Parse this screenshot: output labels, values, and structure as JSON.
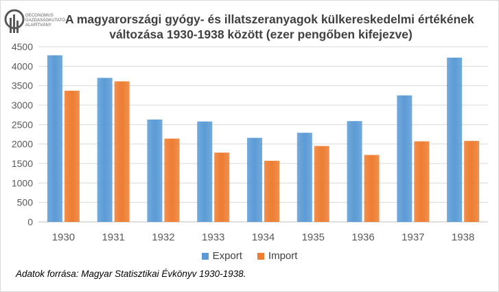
{
  "logo": {
    "lines": [
      "OECONOMUS",
      "GAZDASÁGKUTATÓ",
      "ALAPÍTVÁNY"
    ],
    "color": "#595959"
  },
  "chart_data": {
    "type": "bar",
    "title_lines": [
      "A magyarországi gyógy- és illatszeranyagok külkereskedelmi értékének",
      "változása 1930-1938 között (ezer pengőben kifejezve)"
    ],
    "categories": [
      "1930",
      "1931",
      "1932",
      "1933",
      "1934",
      "1935",
      "1936",
      "1937",
      "1938"
    ],
    "series": [
      {
        "name": "Export",
        "color": "#5b9bd5",
        "values": [
          4280,
          3700,
          2630,
          2580,
          2160,
          2290,
          2590,
          3250,
          4220
        ]
      },
      {
        "name": "Import",
        "color": "#ed7d31",
        "values": [
          3370,
          3610,
          2140,
          1780,
          1570,
          1950,
          1720,
          2070,
          2080
        ]
      }
    ],
    "ylim": [
      0,
      4500
    ],
    "yticks": [
      "0",
      "500",
      "1000",
      "1500",
      "2000",
      "2500",
      "3000",
      "3500",
      "4000",
      "4500"
    ],
    "grid": true,
    "legend": "bottom"
  },
  "source": "Adatok forrása: Magyar Statisztikai Évkönyv 1930-1938."
}
